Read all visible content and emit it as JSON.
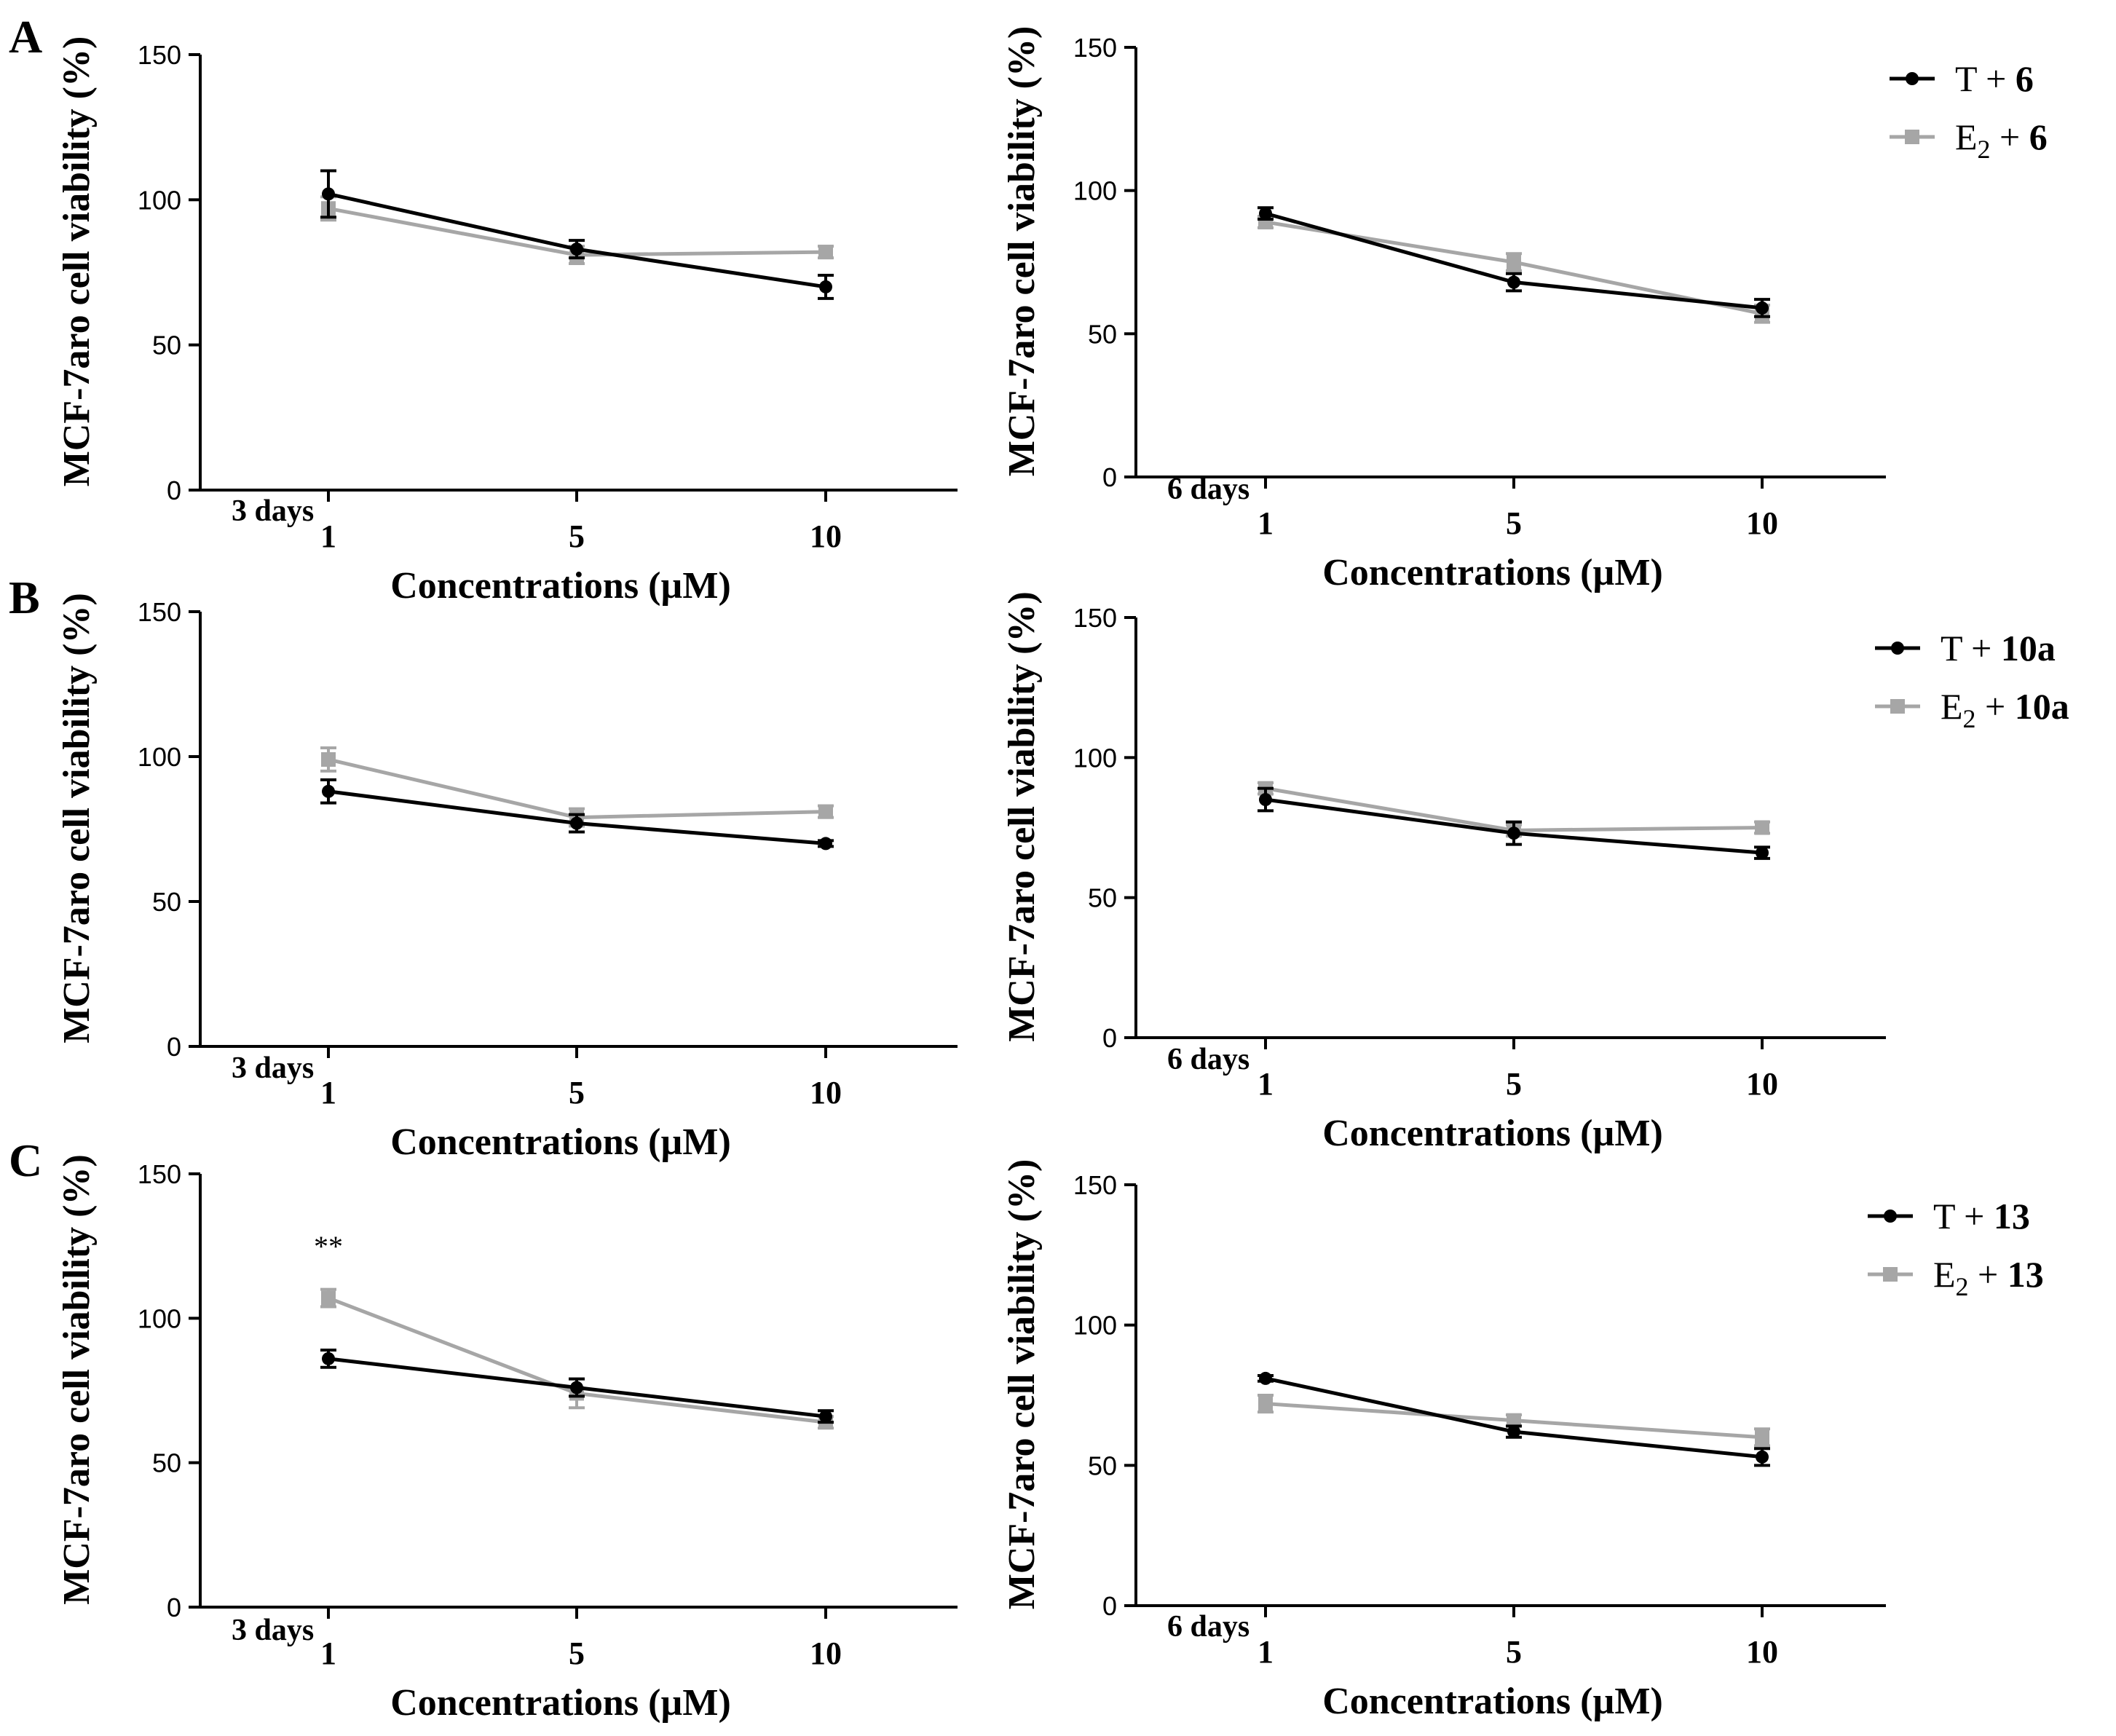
{
  "figure": {
    "colors": {
      "T": "#000000",
      "E2": "#a6a6a6",
      "axis": "#000000"
    }
  },
  "chart_data": [
    {
      "panel": "A",
      "type": "line",
      "days_label": "3 days",
      "ylabel": "MCF-7aro cell viability (%)",
      "xlabel": "Concentrations (µM)",
      "ylim": [
        0,
        150
      ],
      "yticks": [
        "0",
        "50",
        "100",
        "150"
      ],
      "categories": [
        "1",
        "5",
        "10"
      ],
      "series": [
        {
          "name": "T",
          "values": [
            102,
            83,
            70
          ],
          "errors": [
            8,
            3,
            4
          ]
        },
        {
          "name": "E2",
          "values": [
            97,
            81,
            82
          ],
          "errors": [
            4,
            3,
            2
          ]
        }
      ]
    },
    {
      "panel": "",
      "type": "line",
      "days_label": "6 days",
      "ylabel": "MCF-7aro cell viability (%)",
      "xlabel": "Concentrations (µM)",
      "ylim": [
        0,
        150
      ],
      "yticks": [
        "0",
        "50",
        "100",
        "150"
      ],
      "categories": [
        "1",
        "5",
        "10"
      ],
      "legend": {
        "placement": "top-right",
        "T_prefix": "T +",
        "E2_main": "E",
        "E2_sub": "2",
        "E2_plus": "+",
        "compound": "6"
      },
      "series": [
        {
          "name": "T",
          "values": [
            92,
            68,
            59
          ],
          "errors": [
            2,
            3,
            3
          ]
        },
        {
          "name": "E2",
          "values": [
            89,
            75,
            57
          ],
          "errors": [
            2,
            3,
            3
          ]
        }
      ]
    },
    {
      "panel": "B",
      "type": "line",
      "days_label": "3 days",
      "ylabel": "MCF-7aro cell viability (%)",
      "xlabel": "Concentrations (µM)",
      "ylim": [
        0,
        150
      ],
      "yticks": [
        "0",
        "50",
        "100",
        "150"
      ],
      "categories": [
        "1",
        "5",
        "10"
      ],
      "series": [
        {
          "name": "T",
          "values": [
            88,
            77,
            70
          ],
          "errors": [
            4,
            3,
            1
          ]
        },
        {
          "name": "E2",
          "values": [
            99,
            79,
            81
          ],
          "errors": [
            4,
            3,
            2
          ]
        }
      ]
    },
    {
      "panel": "",
      "type": "line",
      "days_label": "6 days",
      "ylabel": "MCF-7aro cell viability (%)",
      "xlabel": "Concentrations (µM)",
      "ylim": [
        0,
        150
      ],
      "yticks": [
        "0",
        "50",
        "100",
        "150"
      ],
      "categories": [
        "1",
        "5",
        "10"
      ],
      "legend": {
        "placement": "top-right",
        "T_prefix": "T +",
        "E2_main": "E",
        "E2_sub": "2",
        "E2_plus": "+",
        "compound": "10a"
      },
      "series": [
        {
          "name": "T",
          "values": [
            85,
            73,
            66
          ],
          "errors": [
            4,
            4,
            2
          ]
        },
        {
          "name": "E2",
          "values": [
            89,
            74,
            75
          ],
          "errors": [
            2,
            2,
            2
          ]
        }
      ]
    },
    {
      "panel": "C",
      "type": "line",
      "days_label": "3 days",
      "ylabel": "MCF-7aro cell viability (%)",
      "xlabel": "Concentrations (µM)",
      "ylim": [
        0,
        150
      ],
      "yticks": [
        "0",
        "50",
        "100",
        "150"
      ],
      "categories": [
        "1",
        "5",
        "10"
      ],
      "annotation": {
        "text": "**",
        "category_index": 0,
        "value": 125
      },
      "series": [
        {
          "name": "T",
          "values": [
            86,
            76,
            66
          ],
          "errors": [
            3,
            3,
            2
          ]
        },
        {
          "name": "E2",
          "values": [
            107,
            74,
            64
          ],
          "errors": [
            3,
            5,
            2
          ]
        }
      ]
    },
    {
      "panel": "",
      "type": "line",
      "days_label": "6 days",
      "ylabel": "MCF-7aro cell viability (%)",
      "xlabel": "Concentrations (µM)",
      "ylim": [
        0,
        150
      ],
      "yticks": [
        "0",
        "50",
        "100",
        "150"
      ],
      "categories": [
        "1",
        "5",
        "10"
      ],
      "legend": {
        "placement": "top-right",
        "T_prefix": "T +",
        "E2_main": "E",
        "E2_sub": "2",
        "E2_plus": "+",
        "compound": "13"
      },
      "series": [
        {
          "name": "T",
          "values": [
            81,
            62,
            53
          ],
          "errors": [
            1,
            2,
            3
          ]
        },
        {
          "name": "E2",
          "values": [
            72,
            66,
            60
          ],
          "errors": [
            3,
            2,
            3
          ]
        }
      ]
    }
  ]
}
